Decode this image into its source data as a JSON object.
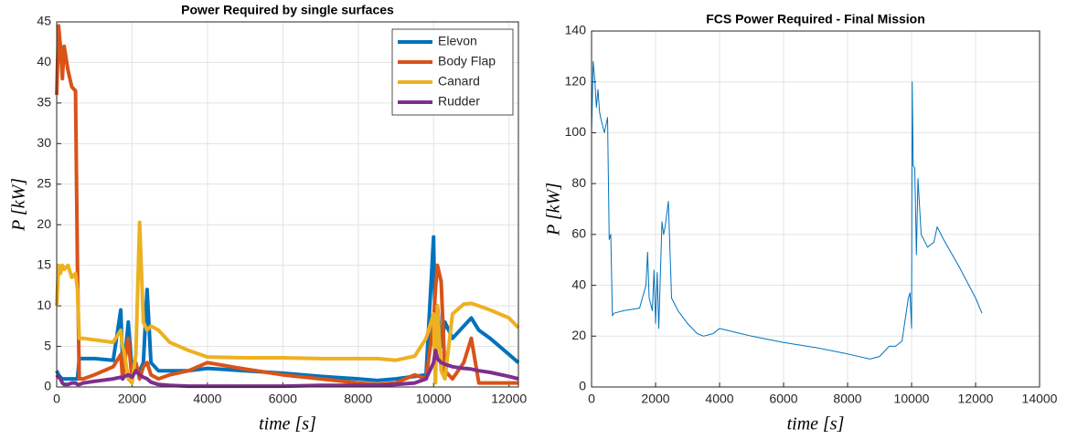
{
  "chart_data": [
    {
      "type": "line",
      "title": "Power Required by single surfaces",
      "x_label": "time [s]",
      "y_label": "P [kW]",
      "x": [
        0,
        50,
        100,
        150,
        200,
        300,
        400,
        500,
        550,
        600,
        700,
        1000,
        1500,
        1700,
        1750,
        1800,
        1900,
        2000,
        2100,
        2200,
        2300,
        2400,
        2500,
        2700,
        3000,
        3500,
        4000,
        5000,
        6000,
        7000,
        8000,
        8500,
        9000,
        9500,
        9800,
        10000,
        10050,
        10100,
        10200,
        10300,
        10500,
        10800,
        11000,
        11200,
        11500,
        12000,
        12250
      ],
      "series": [
        {
          "name": "Elevon",
          "color": "#0072BD",
          "values": [
            2,
            1.5,
            1.2,
            1,
            1,
            1,
            1,
            1,
            1,
            3.5,
            3.5,
            3.5,
            3.3,
            9.5,
            3,
            3,
            8,
            2,
            2,
            2,
            3,
            12,
            3,
            2,
            2,
            2,
            2.3,
            2,
            1.7,
            1.3,
            1,
            0.8,
            1,
            1.3,
            1.5,
            18.5,
            5,
            10,
            5,
            8,
            6,
            7.5,
            8.5,
            7,
            6,
            4,
            3
          ]
        },
        {
          "name": "Body Flap",
          "color": "#D95319",
          "values": [
            36,
            44.5,
            42,
            38,
            42,
            39,
            37,
            36.5,
            15,
            1,
            1,
            1.5,
            2.5,
            4,
            1,
            3,
            6,
            1,
            3,
            1,
            2.5,
            3,
            1.5,
            1,
            1.5,
            2,
            3,
            2.2,
            1.5,
            1,
            0.5,
            0.3,
            0.5,
            1.5,
            1,
            8,
            12,
            15,
            13,
            2,
            1,
            3,
            6,
            0.5,
            0.5,
            0.5,
            0.5
          ]
        },
        {
          "name": "Canard",
          "color": "#EDB120",
          "values": [
            10,
            15,
            14,
            15,
            14.5,
            15,
            13.5,
            14,
            12,
            6,
            6,
            5.8,
            5.5,
            7,
            5,
            4,
            1,
            0.5,
            4,
            20.3,
            8,
            7,
            7.5,
            7,
            5.5,
            4.5,
            3.7,
            3.6,
            3.6,
            3.5,
            3.5,
            3.5,
            3.3,
            3.8,
            6,
            9,
            0.5,
            10,
            2,
            1,
            9,
            10.2,
            10.3,
            10,
            9.5,
            8.5,
            7.3
          ]
        },
        {
          "name": "Rudder",
          "color": "#7E2F8E",
          "values": [
            1.5,
            1.2,
            1,
            0.5,
            0.3,
            0.3,
            0.5,
            0.5,
            0.3,
            0.3,
            0.5,
            0.7,
            1,
            1.2,
            1,
            1.3,
            1.5,
            1.2,
            2,
            1.5,
            1.2,
            1,
            0.6,
            0.3,
            0.2,
            0.1,
            0.1,
            0.1,
            0.1,
            0.2,
            0.2,
            0.2,
            0.3,
            0.5,
            1,
            3,
            4.5,
            3.5,
            3,
            2.8,
            2.5,
            2.3,
            2.2,
            2,
            1.8,
            1.3,
            1
          ]
        }
      ],
      "xlim": [
        0,
        12250
      ],
      "xticks": [
        0,
        2000,
        4000,
        6000,
        8000,
        10000,
        12000
      ],
      "ylim": [
        0,
        45
      ],
      "yticks": [
        0,
        5,
        10,
        15,
        20,
        25,
        30,
        35,
        40,
        45
      ],
      "grid": true,
      "legend": "northeast",
      "line_width": 4
    },
    {
      "type": "line",
      "title": "FCS Power Required - Final Mission",
      "x_label": "time [s]",
      "y_label": "P [kW]",
      "x": [
        0,
        50,
        100,
        150,
        200,
        250,
        300,
        400,
        500,
        550,
        600,
        650,
        700,
        1000,
        1500,
        1700,
        1750,
        1800,
        1900,
        1950,
        2000,
        2050,
        2100,
        2200,
        2250,
        2300,
        2400,
        2500,
        2700,
        3000,
        3300,
        3500,
        3800,
        3900,
        4000,
        4500,
        5000,
        6000,
        7000,
        8000,
        8700,
        9000,
        9300,
        9500,
        9700,
        9900,
        9950,
        10000,
        10020,
        10050,
        10100,
        10150,
        10200,
        10300,
        10500,
        10700,
        10800,
        11000,
        11500,
        12000,
        12200
      ],
      "series": [
        {
          "color": "#0072BD",
          "values": [
            100,
            128,
            121,
            110,
            117,
            108,
            105,
            100,
            106,
            58,
            60,
            28,
            29,
            30,
            31,
            40,
            53,
            35,
            30,
            46,
            25,
            45,
            23,
            65,
            60,
            63,
            73,
            35,
            30,
            25,
            21,
            20,
            21,
            22,
            23,
            21.5,
            20,
            17.5,
            15.5,
            13,
            11,
            12,
            16,
            16,
            18,
            35,
            37,
            23,
            120,
            87,
            86,
            52,
            82,
            60,
            55,
            57,
            63,
            58,
            47,
            35,
            29
          ]
        }
      ],
      "xlim": [
        0,
        14000
      ],
      "xticks": [
        0,
        2000,
        4000,
        6000,
        8000,
        10000,
        12000,
        14000
      ],
      "ylim": [
        0,
        140
      ],
      "yticks": [
        0,
        20,
        40,
        60,
        80,
        100,
        120,
        140
      ],
      "grid": true,
      "line_width": 1
    }
  ]
}
